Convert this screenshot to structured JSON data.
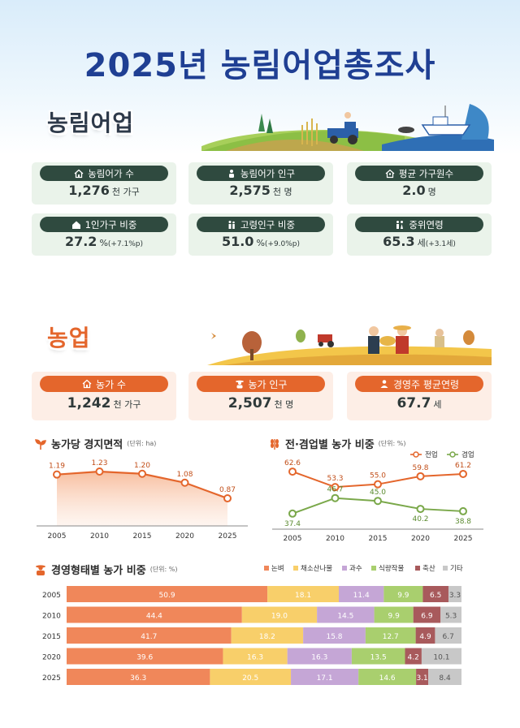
{
  "title": "2025년 농림어업총조사",
  "section_forestry": "농림어업",
  "section_farm": "농업",
  "forestry_cards": [
    {
      "label": "농림어가 수",
      "value": "1,276",
      "unit": "천 가구",
      "delta": "",
      "icon": "house-icon"
    },
    {
      "label": "농림어가 인구",
      "value": "2,575",
      "unit": "천 명",
      "delta": "",
      "icon": "person-icon"
    },
    {
      "label": "평균 가구원수",
      "value": "2.0",
      "unit": "명",
      "delta": "",
      "icon": "house-people-icon"
    },
    {
      "label": "1인가구 비중",
      "value": "27.2",
      "unit": "%",
      "delta": "(+7.1%p)",
      "icon": "single-house-icon"
    },
    {
      "label": "고령인구 비중",
      "value": "51.0",
      "unit": "%",
      "delta": "(+9.0%p)",
      "icon": "elderly-icon"
    },
    {
      "label": "중위연령",
      "value": "65.3",
      "unit": "세",
      "delta": "(+3.1세)",
      "icon": "couple-icon"
    }
  ],
  "farm_cards": [
    {
      "label": "농가 수",
      "value": "1,242",
      "unit": "천 가구",
      "icon": "house-icon"
    },
    {
      "label": "농가 인구",
      "value": "2,507",
      "unit": "천 명",
      "icon": "farmer-icon"
    },
    {
      "label": "경영주 평균연령",
      "value": "67.7",
      "unit": "세",
      "icon": "manager-icon"
    }
  ],
  "charts": {
    "area": {
      "title": "농가당 경지면적",
      "unit_note": "(단위: ha)"
    },
    "fulltime": {
      "title": "전·겸업별 농가 비중",
      "unit_note": "(단위: %)"
    },
    "type": {
      "title": "경영형태별 농가 비중",
      "unit_note": "(단위: %)"
    }
  },
  "chart_data": [
    {
      "type": "area",
      "title": "농가당 경지면적",
      "unit": "ha",
      "x": [
        "2005",
        "2010",
        "2015",
        "2020",
        "2025"
      ],
      "values": [
        1.19,
        1.23,
        1.2,
        1.08,
        0.87
      ],
      "color": "#e4662c"
    },
    {
      "type": "line",
      "title": "전·겸업별 농가 비중",
      "unit": "%",
      "x": [
        "2005",
        "2010",
        "2015",
        "2020",
        "2025"
      ],
      "series": [
        {
          "name": "전업",
          "values": [
            62.6,
            53.3,
            55.0,
            59.8,
            61.2
          ],
          "color": "#e4662c"
        },
        {
          "name": "겸업",
          "values": [
            37.4,
            46.7,
            45.0,
            40.2,
            38.8
          ],
          "color": "#7aa84a"
        }
      ],
      "legend": "top-right"
    },
    {
      "type": "bar",
      "stacked": true,
      "orientation": "horizontal",
      "title": "경영형태별 농가 비중",
      "unit": "%",
      "categories": [
        "2005",
        "2010",
        "2015",
        "2020",
        "2025"
      ],
      "series": [
        {
          "name": "논벼",
          "values": [
            50.9,
            44.4,
            41.7,
            39.6,
            36.3
          ],
          "color": "#f0875a"
        },
        {
          "name": "채소산나물",
          "values": [
            18.1,
            19.0,
            18.2,
            16.3,
            20.5
          ],
          "color": "#f8cf6a"
        },
        {
          "name": "과수",
          "values": [
            11.4,
            14.5,
            15.8,
            16.3,
            17.1
          ],
          "color": "#c5a6d6"
        },
        {
          "name": "식량작물",
          "values": [
            9.9,
            9.9,
            12.7,
            13.5,
            14.6
          ],
          "color": "#a9cf6e"
        },
        {
          "name": "축산",
          "values": [
            6.5,
            6.9,
            4.9,
            4.2,
            3.1
          ],
          "color": "#a85a5c"
        },
        {
          "name": "기타",
          "values": [
            3.3,
            5.3,
            6.7,
            10.1,
            8.4
          ],
          "color": "#c8c8c8"
        }
      ],
      "legend": "top-right"
    }
  ]
}
